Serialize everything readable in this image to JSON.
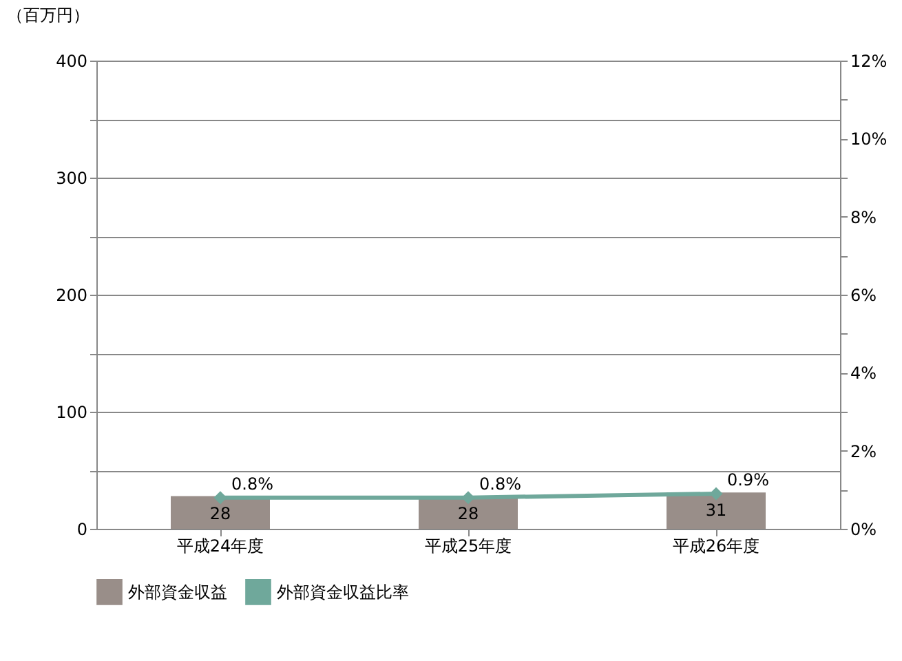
{
  "chart_data": {
    "type": "bar",
    "ylabel": "（百万円）",
    "categories": [
      "平成24年度",
      "平成25年度",
      "平成26年度"
    ],
    "series": [
      {
        "name": "外部資金収益",
        "color": "#998e89",
        "values": [
          28,
          28,
          31
        ],
        "value_labels": [
          "28",
          "28",
          "31"
        ]
      },
      {
        "name": "外部資金収益比率",
        "type": "line",
        "axis": "y2",
        "color": "#6fa89b",
        "marker": "diamond",
        "values": [
          0.8,
          0.8,
          0.9
        ],
        "value_labels": [
          "0.8%",
          "0.8%",
          "0.9%"
        ]
      }
    ],
    "ylim": [
      0,
      400
    ],
    "yticks": [
      0,
      {
        "value": 50,
        "label": null
      },
      100,
      {
        "value": 150,
        "label": null
      },
      200,
      {
        "value": 250,
        "label": null
      },
      300,
      {
        "value": 350,
        "label": null
      },
      400
    ],
    "y2lim": [
      0,
      12
    ],
    "y2ticks": [
      {
        "value": 0,
        "label": "0%"
      },
      {
        "value": 1,
        "label": null
      },
      {
        "value": 2,
        "label": "2%"
      },
      {
        "value": 3,
        "label": null
      },
      {
        "value": 4,
        "label": "4%"
      },
      {
        "value": 5,
        "label": null
      },
      {
        "value": 6,
        "label": "6%"
      },
      {
        "value": 7,
        "label": null
      },
      {
        "value": 8,
        "label": "8%"
      },
      {
        "value": 9,
        "label": null
      },
      {
        "value": 10,
        "label": "10%"
      },
      {
        "value": 11,
        "label": null
      },
      {
        "value": 12,
        "label": "12%"
      }
    ],
    "grid": "y",
    "legend": "bottom"
  }
}
